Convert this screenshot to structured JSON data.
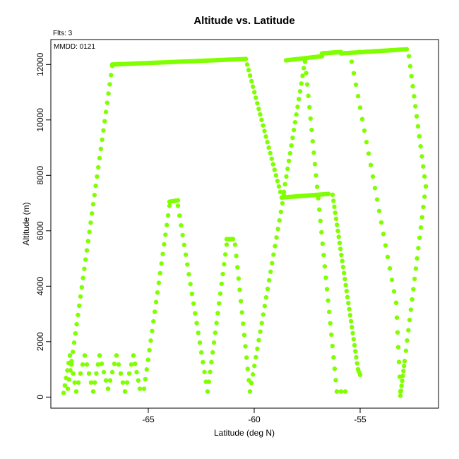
{
  "chart_data": {
    "type": "scatter",
    "title": "Altitude vs. Latitude",
    "xlabel": "Latitude (deg N)",
    "ylabel": "Altitude (m)",
    "xlim": [
      -69.6,
      -51.3
    ],
    "ylim": [
      -400,
      12900
    ],
    "xticks": [
      -65,
      -60,
      -55
    ],
    "yticks": [
      0,
      2000,
      4000,
      6000,
      8000,
      10000,
      12000
    ],
    "annotations": {
      "flights": "Flts: 3",
      "date": "MMDD: 0121"
    },
    "point_color": "#7fff00",
    "grid": false,
    "segments": [
      {
        "from": [
          -69.0,
          150
        ],
        "to": [
          -68.7,
          1500
        ],
        "n": 6
      },
      {
        "from": [
          -68.7,
          1500
        ],
        "to": [
          -68.4,
          200
        ],
        "n": 5
      },
      {
        "from": [
          -68.4,
          200
        ],
        "to": [
          -68.0,
          1500
        ],
        "n": 5
      },
      {
        "from": [
          -68.0,
          1500
        ],
        "to": [
          -67.6,
          200
        ],
        "n": 5
      },
      {
        "from": [
          -67.6,
          200
        ],
        "to": [
          -67.3,
          1500
        ],
        "n": 5
      },
      {
        "from": [
          -67.3,
          1500
        ],
        "to": [
          -66.9,
          300
        ],
        "n": 5
      },
      {
        "from": [
          -66.9,
          300
        ],
        "to": [
          -66.5,
          1500
        ],
        "n": 5
      },
      {
        "from": [
          -66.5,
          1500
        ],
        "to": [
          -66.1,
          200
        ],
        "n": 5
      },
      {
        "from": [
          -66.1,
          200
        ],
        "to": [
          -65.7,
          1500
        ],
        "n": 5
      },
      {
        "from": [
          -65.7,
          1500
        ],
        "to": [
          -65.4,
          300
        ],
        "n": 5
      },
      {
        "from": [
          -68.8,
          300
        ],
        "to": [
          -66.7,
          11950
        ],
        "n": 36
      },
      {
        "from": [
          -66.7,
          12000
        ],
        "to": [
          -60.4,
          12200
        ],
        "n": 70
      },
      {
        "from": [
          -60.4,
          12200
        ],
        "to": [
          -58.7,
          7200
        ],
        "n": 26
      },
      {
        "from": [
          -58.7,
          7200
        ],
        "to": [
          -56.5,
          7330
        ],
        "n": 30
      },
      {
        "from": [
          -56.3,
          7300
        ],
        "to": [
          -55.1,
          1000
        ],
        "n": 30
      },
      {
        "from": [
          -55.1,
          1000
        ],
        "to": [
          -55.0,
          800
        ],
        "n": 3
      },
      {
        "from": [
          -65.2,
          300
        ],
        "to": [
          -64.0,
          6900
        ],
        "n": 20
      },
      {
        "from": [
          -64.0,
          7050
        ],
        "to": [
          -63.6,
          7100
        ],
        "n": 5
      },
      {
        "from": [
          -63.6,
          6900
        ],
        "to": [
          -62.2,
          200
        ],
        "n": 20
      },
      {
        "from": [
          -62.2,
          200
        ],
        "to": [
          -61.3,
          5500
        ],
        "n": 16
      },
      {
        "from": [
          -61.3,
          5700
        ],
        "to": [
          -61.0,
          5700
        ],
        "n": 4
      },
      {
        "from": [
          -60.9,
          5500
        ],
        "to": [
          -60.2,
          200
        ],
        "n": 14
      },
      {
        "from": [
          -60.2,
          200
        ],
        "to": [
          -58.6,
          7300
        ],
        "n": 24
      },
      {
        "from": [
          -58.6,
          7400
        ],
        "to": [
          -57.6,
          12150
        ],
        "n": 18
      },
      {
        "from": [
          -58.5,
          12150
        ],
        "to": [
          -56.8,
          12300
        ],
        "n": 20
      },
      {
        "from": [
          -56.8,
          12400
        ],
        "to": [
          -55.9,
          12450
        ],
        "n": 24
      },
      {
        "from": [
          -55.9,
          12400
        ],
        "to": [
          -52.8,
          12550
        ],
        "n": 40
      },
      {
        "from": [
          -57.6,
          12100
        ],
        "to": [
          -56.1,
          200
        ],
        "n": 30
      },
      {
        "from": [
          -56.1,
          200
        ],
        "to": [
          -55.7,
          200
        ],
        "n": 3
      },
      {
        "from": [
          -55.4,
          12100
        ],
        "to": [
          -53.3,
          3400
        ],
        "n": 22
      },
      {
        "from": [
          -53.3,
          3400
        ],
        "to": [
          -53.1,
          200
        ],
        "n": 7
      },
      {
        "from": [
          -52.7,
          12300
        ],
        "to": [
          -51.9,
          7600
        ],
        "n": 14
      },
      {
        "from": [
          -51.9,
          7600
        ],
        "to": [
          -52.9,
          1300
        ],
        "n": 18
      },
      {
        "from": [
          -52.9,
          1300
        ],
        "to": [
          -53.1,
          50
        ],
        "n": 8
      }
    ]
  }
}
